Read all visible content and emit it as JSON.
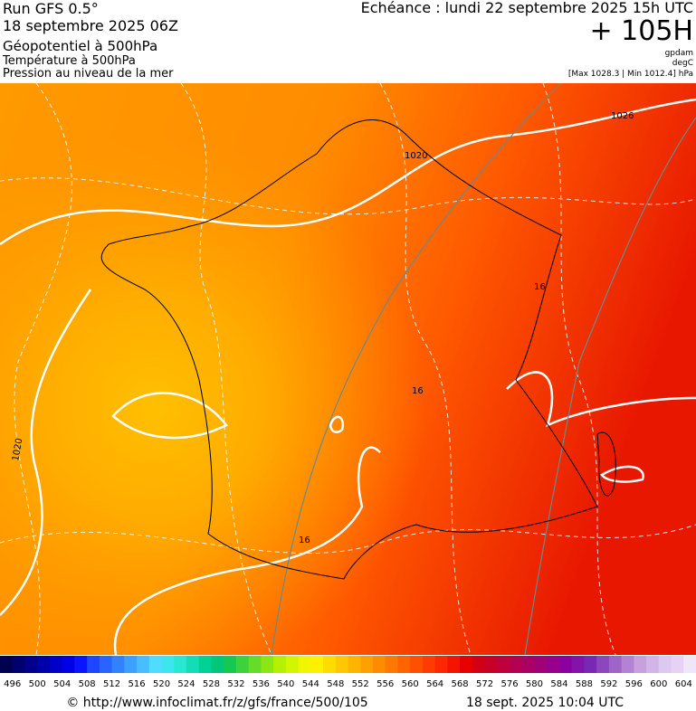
{
  "header": {
    "run": "Run GFS 0.5°",
    "run_date": "18 septembre 2025 06Z",
    "field1": "Géopotentiel à 500hPa",
    "field2": "Température à 500hPa",
    "field3": "Pression au niveau de la mer",
    "valid": "Echéance : lundi 22 septembre 2025 15h UTC",
    "lead": "+ 105H",
    "unit1": "gpdam",
    "unit2": "degC",
    "range": "[Max 1028.3 | Min 1012.4] hPa"
  },
  "map": {
    "contour_labels": [
      1026,
      1020,
      1020,
      16,
      16,
      16
    ]
  },
  "legend": {
    "labels": [
      496,
      500,
      504,
      508,
      512,
      516,
      520,
      524,
      528,
      532,
      536,
      540,
      544,
      548,
      552,
      556,
      560,
      564,
      568,
      572,
      576,
      580,
      584,
      588,
      592,
      596,
      600,
      604
    ],
    "colors": [
      "#000050",
      "#00006e",
      "#00008c",
      "#0000aa",
      "#0000c8",
      "#0000e6",
      "#0a14ff",
      "#1e46ff",
      "#2864ff",
      "#3282ff",
      "#3ca0ff",
      "#46beff",
      "#50dcff",
      "#3ce6f0",
      "#28e6d2",
      "#14dcb4",
      "#00d296",
      "#00c878",
      "#14c850",
      "#3cd23c",
      "#64dc28",
      "#8ce614",
      "#b4f000",
      "#d2f500",
      "#f0f500",
      "#fff000",
      "#ffdc00",
      "#ffc800",
      "#ffb400",
      "#ffa000",
      "#ff8c00",
      "#ff7800",
      "#ff6400",
      "#ff5000",
      "#ff3c00",
      "#ff2800",
      "#f51400",
      "#e60000",
      "#d20014",
      "#c80028",
      "#be003c",
      "#b40050",
      "#aa0064",
      "#a00078",
      "#96008c",
      "#8c00a0",
      "#8214aa",
      "#7828b4",
      "#8c46be",
      "#a064c8",
      "#b482d2",
      "#c8a0dc",
      "#d2b4e6",
      "#dcc8f0",
      "#e6d2f5",
      "#f0e6fa"
    ]
  },
  "footer": {
    "url": "© http://www.infoclimat.fr/z/gfs/france/500/105",
    "generated": "18 sept. 2025 10:04 UTC"
  }
}
